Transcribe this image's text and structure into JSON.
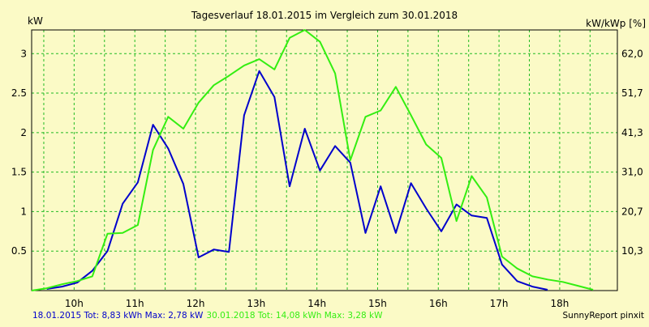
{
  "chart_data": {
    "type": "line",
    "title": "Tagesverlauf 18.01.2015 im Vergleich zum 30.01.2018",
    "ylabel_left": "kW",
    "ylabel_right": "kW/kWp [%]",
    "ylim": [
      0,
      3.3
    ],
    "y_ticks": [
      "0.5",
      "1",
      "1.5",
      "2",
      "2.5",
      "3"
    ],
    "y_tick_values": [
      0.5,
      1,
      1.5,
      2,
      2.5,
      3
    ],
    "y2_ticks": [
      "10,3",
      "20,7",
      "31,0",
      "41,3",
      "51,7",
      "62,0"
    ],
    "xlim": [
      9.3,
      18.95
    ],
    "x_ticks": [
      "10h",
      "11h",
      "12h",
      "13h",
      "14h",
      "15h",
      "16h",
      "17h",
      "18h"
    ],
    "x_tick_values": [
      10,
      11,
      12,
      13,
      14,
      15,
      16,
      17,
      18
    ],
    "x_minor_gridlines": [
      9.5,
      10.5,
      11.5,
      12.5,
      13.5,
      14.5,
      15.5,
      16.5,
      17.5,
      18.5
    ],
    "grid": true,
    "series": [
      {
        "name": "18.01.2015",
        "color": "#0000cc",
        "x": [
          9.55,
          9.8,
          10.05,
          10.3,
          10.55,
          10.8,
          11.05,
          11.3,
          11.55,
          11.8,
          12.05,
          12.3,
          12.55,
          12.8,
          13.05,
          13.3,
          13.55,
          13.8,
          14.05,
          14.3,
          14.55,
          14.8,
          15.05,
          15.3,
          15.55,
          15.8,
          16.05,
          16.3,
          16.55,
          16.8,
          17.05,
          17.3,
          17.55,
          17.8
        ],
        "values": [
          0.02,
          0.05,
          0.1,
          0.25,
          0.5,
          1.1,
          1.37,
          2.1,
          1.8,
          1.35,
          0.42,
          0.52,
          0.49,
          2.22,
          2.78,
          2.45,
          1.32,
          2.05,
          1.52,
          1.83,
          1.62,
          0.73,
          1.32,
          0.73,
          1.36,
          1.04,
          0.75,
          1.09,
          0.95,
          0.92,
          0.33,
          0.12,
          0.05,
          0.01
        ]
      },
      {
        "name": "30.01.2018",
        "color": "#33ee11",
        "x": [
          9.3,
          9.55,
          9.8,
          10.05,
          10.3,
          10.55,
          10.8,
          11.05,
          11.3,
          11.55,
          11.8,
          12.05,
          12.3,
          12.55,
          12.8,
          13.05,
          13.3,
          13.55,
          13.8,
          14.05,
          14.3,
          14.55,
          14.8,
          15.05,
          15.3,
          15.55,
          15.8,
          16.05,
          16.3,
          16.55,
          16.8,
          17.05,
          17.3,
          17.55,
          17.8,
          18.05,
          18.3,
          18.55
        ],
        "values": [
          0.0,
          0.03,
          0.08,
          0.12,
          0.18,
          0.72,
          0.73,
          0.83,
          1.78,
          2.2,
          2.05,
          2.38,
          2.6,
          2.72,
          2.85,
          2.93,
          2.8,
          3.2,
          3.3,
          3.15,
          2.75,
          1.65,
          2.2,
          2.28,
          2.58,
          2.22,
          1.85,
          1.68,
          0.88,
          1.45,
          1.18,
          0.43,
          0.28,
          0.18,
          0.14,
          0.11,
          0.06,
          0.01
        ]
      }
    ],
    "legend": {
      "placement": "bottom-left",
      "entries": [
        {
          "text": "18.01.2015 Tot: 8,83 kWh Max: 2,78 kW",
          "color": "#0000cc"
        },
        {
          "text": "30.01.2018 Tot: 14,08 kWh Max: 3,28 kW",
          "color": "#33ee11"
        }
      ]
    },
    "footer_right": "SunnyReport pinxit",
    "colors": {
      "background": "#fbfac6",
      "grid": "#22bb22",
      "axis": "#000000"
    }
  }
}
